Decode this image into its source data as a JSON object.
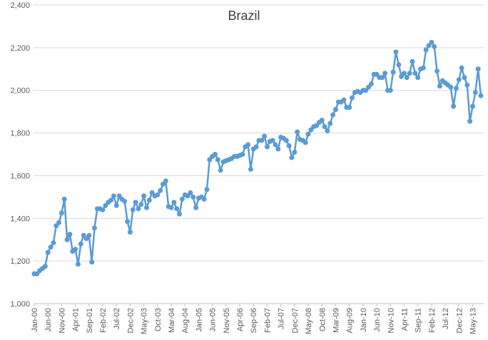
{
  "chart_data": {
    "type": "line",
    "title": "Brazil",
    "xlabel": "",
    "ylabel": "",
    "ylim": [
      1000,
      2400
    ],
    "yticks": [
      1000,
      1200,
      1400,
      1600,
      1800,
      2000,
      2200,
      2400
    ],
    "ytick_labels": [
      "1,000",
      "1,200",
      "1,400",
      "1,600",
      "1,800",
      "2,000",
      "2,200",
      "2,400"
    ],
    "grid": true,
    "legend": "none",
    "line_color": "#5B9BD5",
    "grid_color": "#D9D9D9",
    "start_month": "Jan-00",
    "xtick_labels": [
      "Jan-00",
      "Jun-00",
      "Nov-00",
      "Apr-01",
      "Sep-01",
      "Feb-02",
      "Jul-02",
      "Dec-02",
      "May-03",
      "Oct-03",
      "Mar-04",
      "Aug-04",
      "Jan-05",
      "Jun-05",
      "Nov-05",
      "Apr-06",
      "Sep-06",
      "Feb-07",
      "Jul-07",
      "Dec-07",
      "May-08",
      "Oct-08",
      "Mar-09",
      "Aug-09",
      "Jan-10",
      "Jun-10",
      "Nov-10",
      "Apr-11",
      "Sep-11",
      "Feb-12",
      "Jul-12",
      "Dec-12",
      "May-13"
    ],
    "series": [
      {
        "values": [
          1140,
          1140,
          1155,
          1165,
          1175,
          1240,
          1265,
          1285,
          1365,
          1380,
          1425,
          1490,
          1300,
          1325,
          1245,
          1255,
          1185,
          1280,
          1320,
          1305,
          1320,
          1195,
          1355,
          1445,
          1445,
          1440,
          1460,
          1475,
          1485,
          1505,
          1460,
          1505,
          1490,
          1480,
          1385,
          1335,
          1440,
          1475,
          1445,
          1465,
          1505,
          1450,
          1485,
          1520,
          1505,
          1510,
          1530,
          1560,
          1575,
          1455,
          1450,
          1475,
          1445,
          1420,
          1490,
          1510,
          1505,
          1520,
          1500,
          1450,
          1495,
          1500,
          1490,
          1535,
          1675,
          1690,
          1700,
          1675,
          1625,
          1665,
          1670,
          1675,
          1680,
          1690,
          1690,
          1695,
          1700,
          1735,
          1745,
          1630,
          1725,
          1735,
          1765,
          1765,
          1785,
          1735,
          1760,
          1765,
          1745,
          1725,
          1780,
          1775,
          1765,
          1740,
          1685,
          1710,
          1805,
          1770,
          1765,
          1755,
          1795,
          1815,
          1830,
          1835,
          1850,
          1860,
          1830,
          1810,
          1845,
          1885,
          1910,
          1945,
          1945,
          1955,
          1920,
          1920,
          1965,
          1990,
          1995,
          1990,
          2000,
          2000,
          2015,
          2030,
          2075,
          2075,
          2060,
          2060,
          2080,
          2000,
          2000,
          2085,
          2180,
          2120,
          2065,
          2080,
          2060,
          2080,
          2135,
          2080,
          2060,
          2100,
          2105,
          2190,
          2210,
          2225,
          2205,
          2090,
          2020,
          2045,
          2035,
          2025,
          2015,
          1925,
          2010,
          2050,
          2105,
          2060,
          2025,
          1855,
          1925,
          1990,
          2100,
          1975
        ]
      }
    ]
  }
}
